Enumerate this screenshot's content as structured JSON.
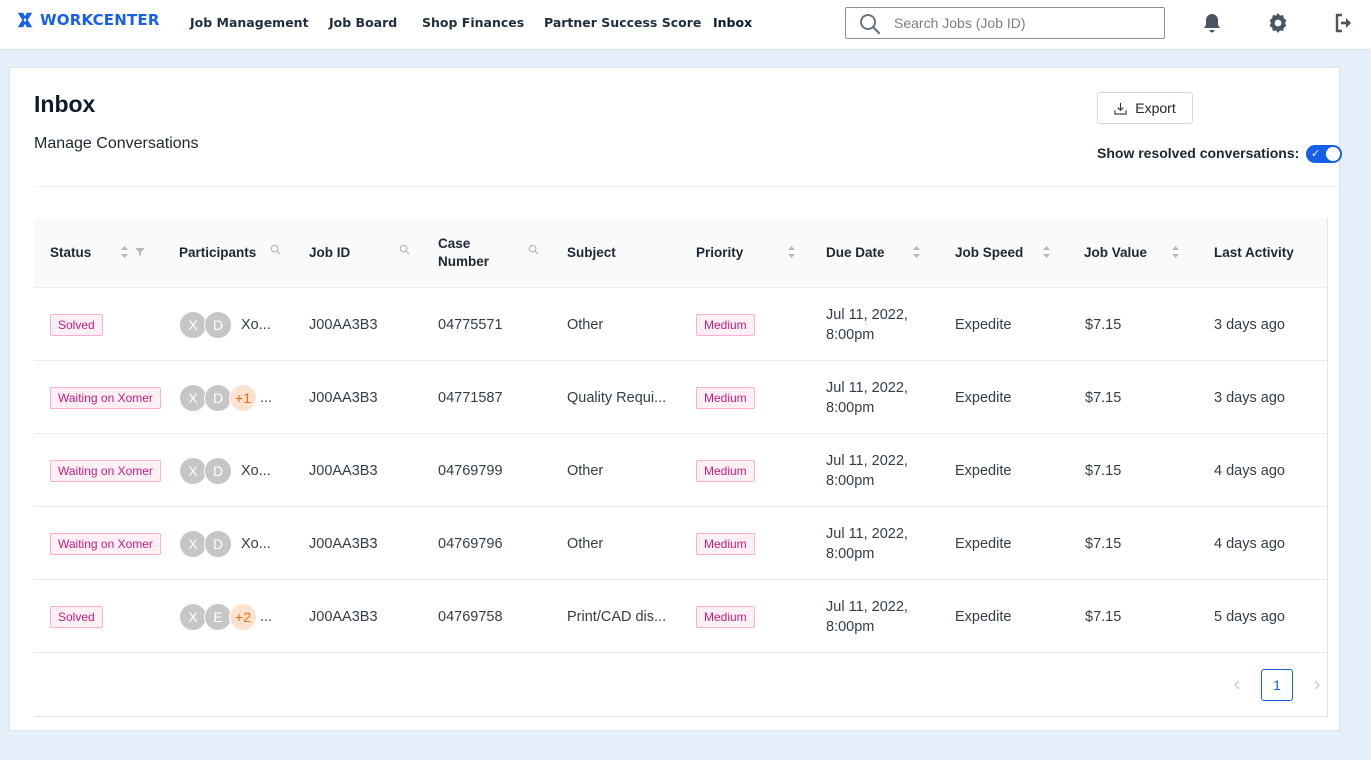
{
  "app": {
    "logo_text": "WORKCENTER",
    "brand_color": "#1660e8"
  },
  "nav": {
    "items": [
      {
        "label": "Job Management"
      },
      {
        "label": "Job Board"
      },
      {
        "label": "Shop Finances"
      },
      {
        "label": "Partner Success Score"
      },
      {
        "label": "Inbox",
        "active": true
      }
    ]
  },
  "search": {
    "placeholder": "Search Jobs (Job ID)",
    "value": ""
  },
  "header_icons": [
    "bell-icon",
    "gear-icon",
    "logout-icon"
  ],
  "page": {
    "title": "Inbox",
    "subtitle": "Manage Conversations",
    "export_label": "Export",
    "resolved_label": "Show resolved conversations:",
    "resolved_on": true
  },
  "table": {
    "columns": [
      "Status",
      "Participants",
      "Job ID",
      "Case Number",
      "Subject",
      "Priority",
      "Due Date",
      "Job Speed",
      "Job Value",
      "Last Activity"
    ],
    "rows": [
      {
        "status": "Solved",
        "avatars": [
          "X",
          "D"
        ],
        "more": "",
        "participants_name": "Xo...",
        "job_id": "J00AA3B3",
        "case_number": "04775571",
        "subject": "Other",
        "priority": "Medium",
        "due_date_line1": "Jul 11, 2022,",
        "due_date_line2": "8:00pm",
        "job_speed": "Expedite",
        "job_value": "$7.15",
        "last_activity": "3 days ago"
      },
      {
        "status": "Waiting on Xomer",
        "avatars": [
          "X",
          "D"
        ],
        "more": "+1",
        "participants_name": "...",
        "job_id": "J00AA3B3",
        "case_number": "04771587",
        "subject": "Quality Requi...",
        "priority": "Medium",
        "due_date_line1": "Jul 11, 2022,",
        "due_date_line2": "8:00pm",
        "job_speed": "Expedite",
        "job_value": "$7.15",
        "last_activity": "3 days ago"
      },
      {
        "status": "Waiting on Xomer",
        "avatars": [
          "X",
          "D"
        ],
        "more": "",
        "participants_name": "Xo...",
        "job_id": "J00AA3B3",
        "case_number": "04769799",
        "subject": "Other",
        "priority": "Medium",
        "due_date_line1": "Jul 11, 2022,",
        "due_date_line2": "8:00pm",
        "job_speed": "Expedite",
        "job_value": "$7.15",
        "last_activity": "4 days ago"
      },
      {
        "status": "Waiting on Xomer",
        "avatars": [
          "X",
          "D"
        ],
        "more": "",
        "participants_name": "Xo...",
        "job_id": "J00AA3B3",
        "case_number": "04769796",
        "subject": "Other",
        "priority": "Medium",
        "due_date_line1": "Jul 11, 2022,",
        "due_date_line2": "8:00pm",
        "job_speed": "Expedite",
        "job_value": "$7.15",
        "last_activity": "4 days ago"
      },
      {
        "status": "Solved",
        "avatars": [
          "X",
          "E"
        ],
        "more": "+2",
        "participants_name": "...",
        "job_id": "J00AA3B3",
        "case_number": "04769758",
        "subject": "Print/CAD dis...",
        "priority": "Medium",
        "due_date_line1": "Jul 11, 2022,",
        "due_date_line2": "8:00pm",
        "job_speed": "Expedite",
        "job_value": "$7.15",
        "last_activity": "5 days ago"
      }
    ]
  },
  "pagination": {
    "current_page": "1"
  }
}
